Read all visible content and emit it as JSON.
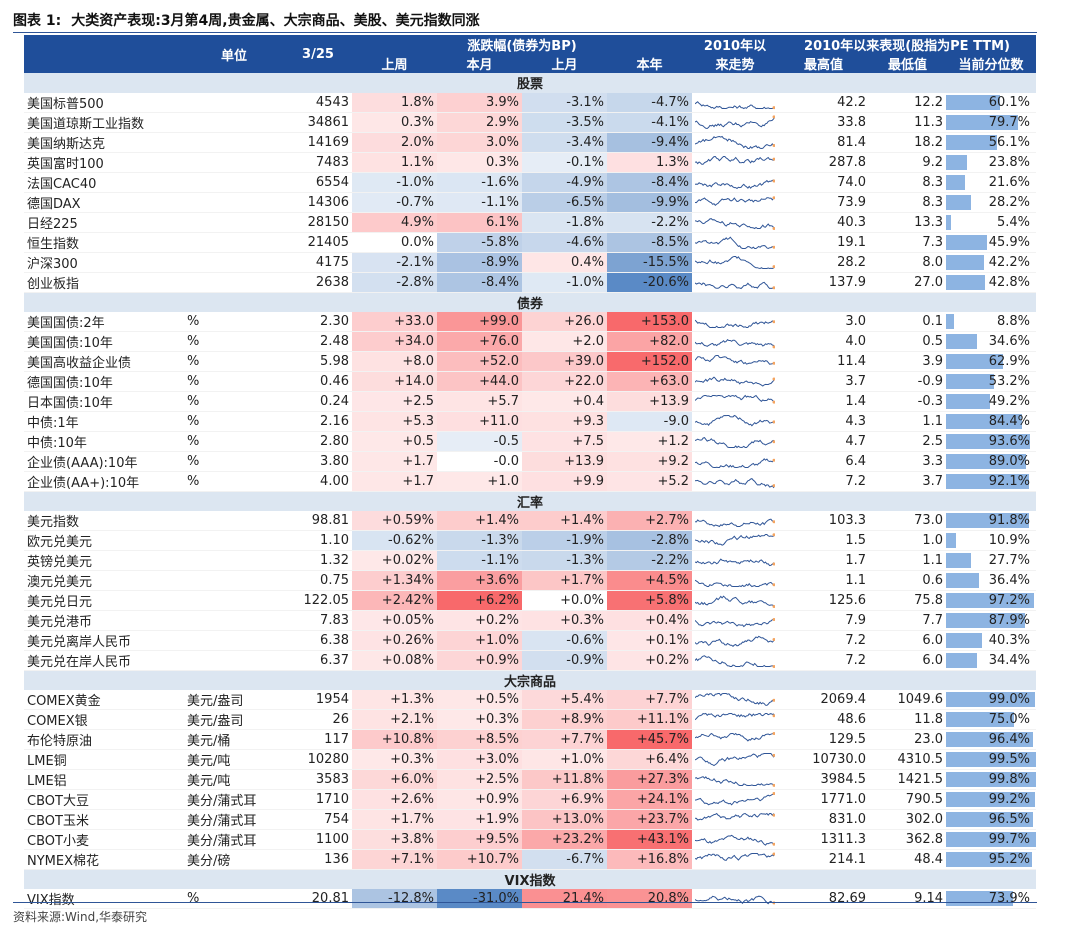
{
  "title_num": "图表 1:",
  "title": "大类资产表现:3月第4周,贵金属、大宗商品、美股、美元指数同涨",
  "header": {
    "unit": "单位",
    "date": "3/25",
    "chg_group": "涨跌幅(债券为BP)",
    "trend": [
      "2010年以",
      "来走势"
    ],
    "since_group": "2010年以来表现(股指为PE TTM)",
    "sub": [
      "上周",
      "本月",
      "上月",
      "本年",
      "最高值",
      "最低值",
      "当前分位数"
    ]
  },
  "sections": [
    {
      "name": "股票",
      "rows": [
        {
          "name": "美国标普500",
          "unit": "",
          "val": "4543",
          "c": [
            "1.8%",
            "3.9%",
            "-3.1%",
            "-4.7%"
          ],
          "cv": [
            1.8,
            3.9,
            -3.1,
            -4.7
          ],
          "hi": "42.2",
          "lo": "12.2",
          "pct": 60.1,
          "pct_label": "60.1%"
        },
        {
          "name": "美国道琼斯工业指数",
          "unit": "",
          "val": "34861",
          "c": [
            "0.3%",
            "2.9%",
            "-3.5%",
            "-4.1%"
          ],
          "cv": [
            0.3,
            2.9,
            -3.5,
            -4.1
          ],
          "hi": "33.8",
          "lo": "11.3",
          "pct": 79.7,
          "pct_label": "79.7%"
        },
        {
          "name": "美国纳斯达克",
          "unit": "",
          "val": "14169",
          "c": [
            "2.0%",
            "3.0%",
            "-3.4%",
            "-9.4%"
          ],
          "cv": [
            2.0,
            3.0,
            -3.4,
            -9.4
          ],
          "hi": "81.4",
          "lo": "18.2",
          "pct": 56.1,
          "pct_label": "56.1%"
        },
        {
          "name": "英国富时100",
          "unit": "",
          "val": "7483",
          "c": [
            "1.1%",
            "0.3%",
            "-0.1%",
            "1.3%"
          ],
          "cv": [
            1.1,
            0.3,
            -0.1,
            1.3
          ],
          "hi": "287.8",
          "lo": "9.2",
          "pct": 23.8,
          "pct_label": "23.8%"
        },
        {
          "name": "法国CAC40",
          "unit": "",
          "val": "6554",
          "c": [
            "-1.0%",
            "-1.6%",
            "-4.9%",
            "-8.4%"
          ],
          "cv": [
            -1.0,
            -1.6,
            -4.9,
            -8.4
          ],
          "hi": "74.0",
          "lo": "8.3",
          "pct": 21.6,
          "pct_label": "21.6%"
        },
        {
          "name": "德国DAX",
          "unit": "",
          "val": "14306",
          "c": [
            "-0.7%",
            "-1.1%",
            "-6.5%",
            "-9.9%"
          ],
          "cv": [
            -0.7,
            -1.1,
            -6.5,
            -9.9
          ],
          "hi": "73.9",
          "lo": "8.3",
          "pct": 28.2,
          "pct_label": "28.2%"
        },
        {
          "name": "日经225",
          "unit": "",
          "val": "28150",
          "c": [
            "4.9%",
            "6.1%",
            "-1.8%",
            "-2.2%"
          ],
          "cv": [
            4.9,
            6.1,
            -1.8,
            -2.2
          ],
          "hi": "40.3",
          "lo": "13.3",
          "pct": 5.4,
          "pct_label": "5.4%"
        },
        {
          "name": "恒生指数",
          "unit": "",
          "val": "21405",
          "c": [
            "0.0%",
            "-5.8%",
            "-4.6%",
            "-8.5%"
          ],
          "cv": [
            0.0,
            -5.8,
            -4.6,
            -8.5
          ],
          "hi": "19.1",
          "lo": "7.3",
          "pct": 45.9,
          "pct_label": "45.9%"
        },
        {
          "name": "沪深300",
          "unit": "",
          "val": "4175",
          "c": [
            "-2.1%",
            "-8.9%",
            "0.4%",
            "-15.5%"
          ],
          "cv": [
            -2.1,
            -8.9,
            0.4,
            -15.5
          ],
          "hi": "28.2",
          "lo": "8.0",
          "pct": 42.2,
          "pct_label": "42.2%"
        },
        {
          "name": "创业板指",
          "unit": "",
          "val": "2638",
          "c": [
            "-2.8%",
            "-8.4%",
            "-1.0%",
            "-20.6%"
          ],
          "cv": [
            -2.8,
            -8.4,
            -1.0,
            -20.6
          ],
          "hi": "137.9",
          "lo": "27.0",
          "pct": 42.8,
          "pct_label": "42.8%"
        }
      ]
    },
    {
      "name": "债券",
      "rows": [
        {
          "name": "美国国债:2年",
          "unit": "%",
          "val": "2.30",
          "c": [
            "+33.0",
            "+99.0",
            "+26.0",
            "+153.0"
          ],
          "cv": [
            33,
            99,
            26,
            153
          ],
          "hi": "3.0",
          "lo": "0.1",
          "pct": 8.8,
          "pct_label": "8.8%"
        },
        {
          "name": "美国国债:10年",
          "unit": "%",
          "val": "2.48",
          "c": [
            "+34.0",
            "+76.0",
            "+2.0",
            "+82.0"
          ],
          "cv": [
            34,
            76,
            2,
            82
          ],
          "hi": "4.0",
          "lo": "0.5",
          "pct": 34.6,
          "pct_label": "34.6%"
        },
        {
          "name": "美国高收益企业债",
          "unit": "%",
          "val": "5.98",
          "c": [
            "+8.0",
            "+52.0",
            "+39.0",
            "+152.0"
          ],
          "cv": [
            8,
            52,
            39,
            152
          ],
          "hi": "11.4",
          "lo": "3.9",
          "pct": 62.9,
          "pct_label": "62.9%"
        },
        {
          "name": "德国国债:10年",
          "unit": "%",
          "val": "0.46",
          "c": [
            "+14.0",
            "+44.0",
            "+22.0",
            "+63.0"
          ],
          "cv": [
            14,
            44,
            22,
            63
          ],
          "hi": "3.7",
          "lo": "-0.9",
          "pct": 53.2,
          "pct_label": "53.2%"
        },
        {
          "name": "日本国债:10年",
          "unit": "%",
          "val": "0.24",
          "c": [
            "+2.5",
            "+5.7",
            "+0.4",
            "+13.9"
          ],
          "cv": [
            2.5,
            5.7,
            0.4,
            13.9
          ],
          "hi": "1.4",
          "lo": "-0.3",
          "pct": 49.2,
          "pct_label": "49.2%"
        },
        {
          "name": "中债:1年",
          "unit": "%",
          "val": "2.16",
          "c": [
            "+5.3",
            "+11.0",
            "+9.3",
            "-9.0"
          ],
          "cv": [
            5.3,
            11,
            9.3,
            -9
          ],
          "hi": "4.3",
          "lo": "1.1",
          "pct": 84.4,
          "pct_label": "84.4%"
        },
        {
          "name": "中债:10年",
          "unit": "%",
          "val": "2.80",
          "c": [
            "+0.5",
            "-0.5",
            "+7.5",
            "+1.2"
          ],
          "cv": [
            0.5,
            -0.5,
            7.5,
            1.2
          ],
          "hi": "4.7",
          "lo": "2.5",
          "pct": 93.6,
          "pct_label": "93.6%"
        },
        {
          "name": "企业债(AAA):10年",
          "unit": "%",
          "val": "3.80",
          "c": [
            "+1.7",
            "-0.0",
            "+13.9",
            "+9.2"
          ],
          "cv": [
            1.7,
            0,
            13.9,
            9.2
          ],
          "hi": "6.4",
          "lo": "3.3",
          "pct": 89.0,
          "pct_label": "89.0%"
        },
        {
          "name": "企业债(AA+):10年",
          "unit": "%",
          "val": "4.00",
          "c": [
            "+1.7",
            "+1.0",
            "+9.9",
            "+5.2"
          ],
          "cv": [
            1.7,
            1,
            9.9,
            5.2
          ],
          "hi": "7.2",
          "lo": "3.7",
          "pct": 92.1,
          "pct_label": "92.1%"
        }
      ]
    },
    {
      "name": "汇率",
      "rows": [
        {
          "name": "美元指数",
          "unit": "",
          "val": "98.81",
          "c": [
            "+0.59%",
            "+1.4%",
            "+1.4%",
            "+2.7%"
          ],
          "cv": [
            0.59,
            1.4,
            1.4,
            2.7
          ],
          "hi": "103.3",
          "lo": "73.0",
          "pct": 91.8,
          "pct_label": "91.8%"
        },
        {
          "name": "欧元兑美元",
          "unit": "",
          "val": "1.10",
          "c": [
            "-0.62%",
            "-1.3%",
            "-1.9%",
            "-2.8%"
          ],
          "cv": [
            -0.62,
            -1.3,
            -1.9,
            -2.8
          ],
          "hi": "1.5",
          "lo": "1.0",
          "pct": 10.9,
          "pct_label": "10.9%"
        },
        {
          "name": "英镑兑美元",
          "unit": "",
          "val": "1.32",
          "c": [
            "+0.02%",
            "-1.1%",
            "-1.3%",
            "-2.2%"
          ],
          "cv": [
            0.02,
            -1.1,
            -1.3,
            -2.2
          ],
          "hi": "1.7",
          "lo": "1.1",
          "pct": 27.7,
          "pct_label": "27.7%"
        },
        {
          "name": "澳元兑美元",
          "unit": "",
          "val": "0.75",
          "c": [
            "+1.34%",
            "+3.6%",
            "+1.7%",
            "+4.5%"
          ],
          "cv": [
            1.34,
            3.6,
            1.7,
            4.5
          ],
          "hi": "1.1",
          "lo": "0.6",
          "pct": 36.4,
          "pct_label": "36.4%"
        },
        {
          "name": "美元兑日元",
          "unit": "",
          "val": "122.05",
          "c": [
            "+2.42%",
            "+6.2%",
            "+0.0%",
            "+5.8%"
          ],
          "cv": [
            2.42,
            6.2,
            0,
            5.8
          ],
          "hi": "125.6",
          "lo": "75.8",
          "pct": 97.2,
          "pct_label": "97.2%"
        },
        {
          "name": "美元兑港币",
          "unit": "",
          "val": "7.83",
          "c": [
            "+0.05%",
            "+0.2%",
            "+0.3%",
            "+0.4%"
          ],
          "cv": [
            0.05,
            0.2,
            0.3,
            0.4
          ],
          "hi": "7.9",
          "lo": "7.7",
          "pct": 87.9,
          "pct_label": "87.9%"
        },
        {
          "name": "美元兑离岸人民币",
          "unit": "",
          "val": "6.38",
          "c": [
            "+0.26%",
            "+1.0%",
            "-0.6%",
            "+0.1%"
          ],
          "cv": [
            0.26,
            1,
            -0.6,
            0.1
          ],
          "hi": "7.2",
          "lo": "6.0",
          "pct": 40.3,
          "pct_label": "40.3%"
        },
        {
          "name": "美元兑在岸人民币",
          "unit": "",
          "val": "6.37",
          "c": [
            "+0.08%",
            "+0.9%",
            "-0.9%",
            "+0.2%"
          ],
          "cv": [
            0.08,
            0.9,
            -0.9,
            0.2
          ],
          "hi": "7.2",
          "lo": "6.0",
          "pct": 34.4,
          "pct_label": "34.4%"
        }
      ]
    },
    {
      "name": "大宗商品",
      "rows": [
        {
          "name": "COMEX黄金",
          "unit": "美元/盎司",
          "val": "1954",
          "c": [
            "+1.3%",
            "+0.5%",
            "+5.4%",
            "+7.7%"
          ],
          "cv": [
            1.3,
            0.5,
            5.4,
            7.7
          ],
          "hi": "2069.4",
          "lo": "1049.6",
          "pct": 99.0,
          "pct_label": "99.0%"
        },
        {
          "name": "COMEX银",
          "unit": "美元/盎司",
          "val": "26",
          "c": [
            "+2.1%",
            "+0.3%",
            "+8.9%",
            "+11.1%"
          ],
          "cv": [
            2.1,
            0.3,
            8.9,
            11.1
          ],
          "hi": "48.6",
          "lo": "11.8",
          "pct": 75.0,
          "pct_label": "75.0%"
        },
        {
          "name": "布伦特原油",
          "unit": "美元/桶",
          "val": "117",
          "c": [
            "+10.8%",
            "+8.5%",
            "+7.7%",
            "+45.7%"
          ],
          "cv": [
            10.8,
            8.5,
            7.7,
            45.7
          ],
          "hi": "129.5",
          "lo": "23.0",
          "pct": 96.4,
          "pct_label": "96.4%"
        },
        {
          "name": "LME铜",
          "unit": "美元/吨",
          "val": "10280",
          "c": [
            "+0.3%",
            "+3.0%",
            "+1.0%",
            "+6.4%"
          ],
          "cv": [
            0.3,
            3.0,
            1.0,
            6.4
          ],
          "hi": "10730.0",
          "lo": "4310.5",
          "pct": 99.5,
          "pct_label": "99.5%"
        },
        {
          "name": "LME铝",
          "unit": "美元/吨",
          "val": "3583",
          "c": [
            "+6.0%",
            "+2.5%",
            "+11.8%",
            "+27.3%"
          ],
          "cv": [
            6,
            2.5,
            11.8,
            27.3
          ],
          "hi": "3984.5",
          "lo": "1421.5",
          "pct": 99.8,
          "pct_label": "99.8%"
        },
        {
          "name": "CBOT大豆",
          "unit": "美分/蒲式耳",
          "val": "1710",
          "c": [
            "+2.6%",
            "+0.9%",
            "+6.9%",
            "+24.1%"
          ],
          "cv": [
            2.6,
            0.9,
            6.9,
            24.1
          ],
          "hi": "1771.0",
          "lo": "790.5",
          "pct": 99.2,
          "pct_label": "99.2%"
        },
        {
          "name": "CBOT玉米",
          "unit": "美分/蒲式耳",
          "val": "754",
          "c": [
            "+1.7%",
            "+1.9%",
            "+13.0%",
            "+23.7%"
          ],
          "cv": [
            1.7,
            1.9,
            13,
            23.7
          ],
          "hi": "831.0",
          "lo": "302.0",
          "pct": 96.5,
          "pct_label": "96.5%"
        },
        {
          "name": "CBOT小麦",
          "unit": "美分/蒲式耳",
          "val": "1100",
          "c": [
            "+3.8%",
            "+9.5%",
            "+23.2%",
            "+43.1%"
          ],
          "cv": [
            3.8,
            9.5,
            23.2,
            43.1
          ],
          "hi": "1311.3",
          "lo": "362.8",
          "pct": 99.7,
          "pct_label": "99.7%"
        },
        {
          "name": "NYMEX棉花",
          "unit": "美分/磅",
          "val": "136",
          "c": [
            "+7.1%",
            "+10.7%",
            "-6.7%",
            "+16.8%"
          ],
          "cv": [
            7.1,
            10.7,
            -6.7,
            16.8
          ],
          "hi": "214.1",
          "lo": "48.4",
          "pct": 95.2,
          "pct_label": "95.2%"
        }
      ]
    },
    {
      "name": "VIX指数",
      "rows": [
        {
          "name": "VIX指数",
          "unit": "%",
          "val": "20.81",
          "c": [
            "-12.8%",
            "-31.0%",
            "21.4%",
            "20.8%"
          ],
          "cv": [
            -12.8,
            -31,
            21.4,
            20.8
          ],
          "hi": "82.69",
          "lo": "9.14",
          "pct": 73.9,
          "pct_label": "73.9%"
        }
      ]
    }
  ],
  "colors": {
    "header": "#1f4e9a",
    "section": "#dce6f1",
    "up": "#f8696b",
    "down": "#5a8ac6",
    "bar": "#8db4e2",
    "spark": "#2f5597",
    "spark_marker": "#f4a460"
  },
  "source": "资料来源:Wind,华泰研究"
}
